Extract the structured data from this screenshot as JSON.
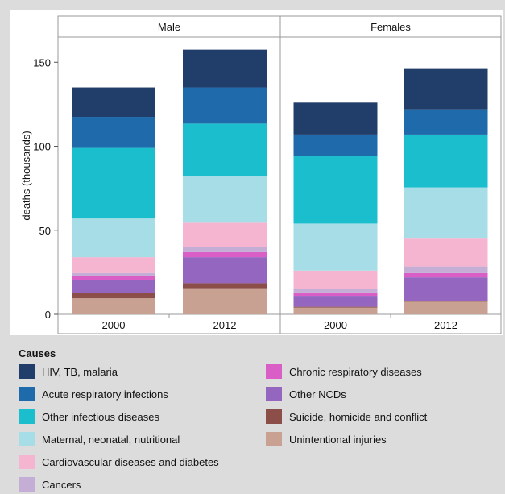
{
  "chart_data": {
    "type": "bar",
    "stacked": true,
    "facets": [
      "Male",
      "Females"
    ],
    "categories": [
      "2000",
      "2012"
    ],
    "ylabel": "deaths (thousands)",
    "xlabel": "",
    "ylim": [
      0,
      165
    ],
    "yticks": [
      0,
      50,
      100,
      150
    ],
    "grid": false,
    "legend_title": "Causes",
    "legend_position": "bottom",
    "series": [
      {
        "name": "Unintentional injuries",
        "color": "#c9a193",
        "values": {
          "Male": [
            9.5,
            15.5
          ],
          "Females": [
            4,
            7.5
          ]
        }
      },
      {
        "name": "Suicide, homicide and conflict",
        "color": "#8c4e48",
        "values": {
          "Male": [
            3,
            3
          ],
          "Females": [
            0.5,
            0.5
          ]
        }
      },
      {
        "name": "Other NCDs",
        "color": "#9466c0",
        "values": {
          "Male": [
            8,
            15.5
          ],
          "Females": [
            6.5,
            14
          ]
        }
      },
      {
        "name": "Chronic respiratory diseases",
        "color": "#d95fc6",
        "values": {
          "Male": [
            2.5,
            3
          ],
          "Females": [
            2,
            2.5
          ]
        }
      },
      {
        "name": "Cancers",
        "color": "#c4aed6",
        "values": {
          "Male": [
            1.5,
            3
          ],
          "Females": [
            2,
            4
          ]
        }
      },
      {
        "name": "Cardiovascular diseases and diabetes",
        "color": "#f5b5d0",
        "values": {
          "Male": [
            9.5,
            14.5
          ],
          "Females": [
            11,
            17
          ]
        }
      },
      {
        "name": "Maternal, neonatal, nutritional",
        "color": "#a6dde6",
        "values": {
          "Male": [
            23,
            28
          ],
          "Females": [
            28,
            30
          ]
        }
      },
      {
        "name": "Other infectious diseases",
        "color": "#1bbecd",
        "values": {
          "Male": [
            42,
            31
          ],
          "Females": [
            40,
            31.5
          ]
        }
      },
      {
        "name": "Acute respiratory infections",
        "color": "#1e6aab",
        "values": {
          "Male": [
            18.5,
            21.5
          ],
          "Females": [
            13,
            15
          ]
        }
      },
      {
        "name": "HIV, TB, malaria",
        "color": "#213d69",
        "values": {
          "Male": [
            17.5,
            22.5
          ],
          "Females": [
            19,
            24
          ]
        }
      }
    ]
  },
  "legend": {
    "title": "Causes",
    "items": [
      {
        "label": "HIV, TB, malaria",
        "color": "#213d69"
      },
      {
        "label": "Acute respiratory infections",
        "color": "#1e6aab"
      },
      {
        "label": "Other infectious diseases",
        "color": "#1bbecd"
      },
      {
        "label": "Maternal, neonatal, nutritional",
        "color": "#a6dde6"
      },
      {
        "label": "Cardiovascular diseases and diabetes",
        "color": "#f5b5d0"
      },
      {
        "label": "Cancers",
        "color": "#c4aed6"
      },
      {
        "label": "Chronic respiratory diseases",
        "color": "#d95fc6"
      },
      {
        "label": "Other NCDs",
        "color": "#9466c0"
      },
      {
        "label": "Suicide, homicide and conflict",
        "color": "#8c4e48"
      },
      {
        "label": "Unintentional injuries",
        "color": "#c9a193"
      }
    ]
  }
}
